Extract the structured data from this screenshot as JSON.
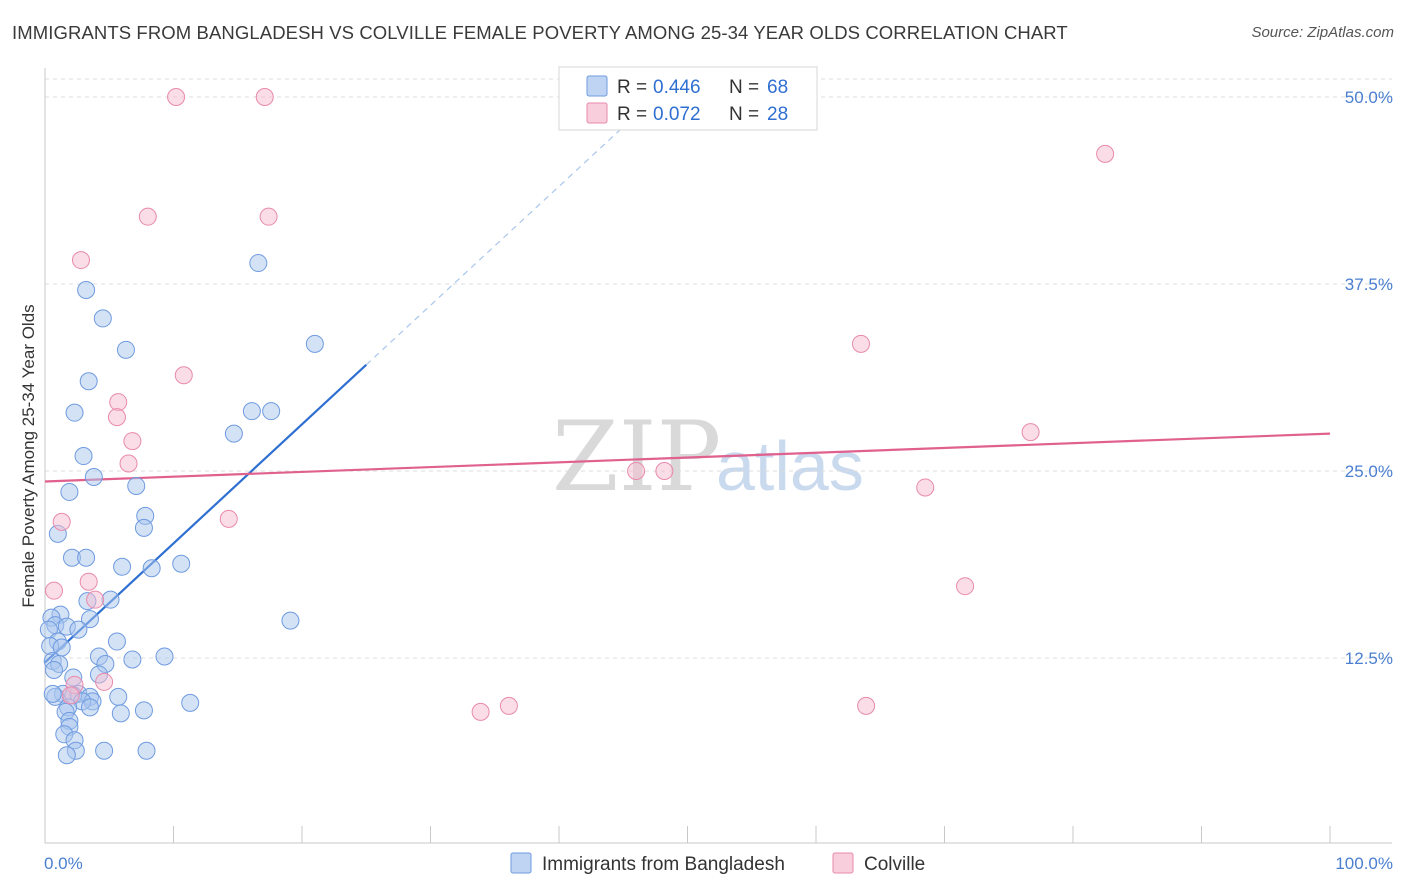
{
  "title": "IMMIGRANTS FROM BANGLADESH VS COLVILLE FEMALE POVERTY AMONG 25-34 YEAR OLDS CORRELATION CHART",
  "source": "Source: ZipAtlas.com",
  "watermark": {
    "zip": "ZIP",
    "atlas": "atlas"
  },
  "legend": {
    "r_label": "R =",
    "n_label": "N =",
    "rows": [
      {
        "r": "0.446",
        "n": "68"
      },
      {
        "r": "0.072",
        "n": "28"
      }
    ]
  },
  "chart_data": {
    "type": "scatter",
    "title": "IMMIGRANTS FROM BANGLADESH VS COLVILLE FEMALE POVERTY AMONG 25-34 YEAR OLDS CORRELATION CHART",
    "xlabel": "",
    "ylabel": "Female Poverty Among 25-34 Year Olds",
    "xlim": [
      0,
      100
    ],
    "ylim": [
      0,
      50
    ],
    "x_tick_labels": [
      "0.0%",
      "100.0%"
    ],
    "y_tick_labels": [
      "12.5%",
      "25.0%",
      "37.5%",
      "50.0%"
    ],
    "y_ticks": [
      12.5,
      25.0,
      37.5,
      50.0
    ],
    "grid": "horizontal dashed",
    "legend_position": "top-center",
    "series": [
      {
        "name": "Immigrants from Bangladesh",
        "color": "#a9c6ee",
        "edge": "#6f9be0",
        "line_color": "#2e6fd1",
        "r": 0.446,
        "n": 68,
        "trend": {
          "x0": 0,
          "y0": 12.2,
          "x1": 25.0,
          "y1": 32.1,
          "dashed_to": {
            "x": 45.0,
            "y": 48.0
          }
        },
        "points": [
          [
            3.2,
            37.1
          ],
          [
            4.5,
            35.2
          ],
          [
            6.3,
            33.1
          ],
          [
            3.4,
            31.0
          ],
          [
            2.3,
            28.9
          ],
          [
            3.0,
            26.0
          ],
          [
            3.8,
            24.6
          ],
          [
            7.1,
            24.0
          ],
          [
            1.9,
            23.6
          ],
          [
            7.8,
            22.0
          ],
          [
            7.7,
            21.2
          ],
          [
            1.0,
            20.8
          ],
          [
            2.1,
            19.2
          ],
          [
            3.2,
            19.2
          ],
          [
            6.0,
            18.6
          ],
          [
            8.3,
            18.5
          ],
          [
            10.6,
            18.8
          ],
          [
            5.1,
            16.4
          ],
          [
            3.3,
            16.3
          ],
          [
            1.2,
            15.4
          ],
          [
            0.5,
            15.2
          ],
          [
            3.5,
            15.1
          ],
          [
            0.8,
            14.7
          ],
          [
            1.7,
            14.6
          ],
          [
            0.3,
            14.4
          ],
          [
            2.6,
            14.4
          ],
          [
            1.0,
            13.6
          ],
          [
            5.6,
            13.6
          ],
          [
            0.4,
            13.3
          ],
          [
            1.3,
            13.2
          ],
          [
            4.2,
            12.6
          ],
          [
            6.8,
            12.4
          ],
          [
            9.3,
            12.6
          ],
          [
            0.6,
            12.3
          ],
          [
            1.1,
            12.1
          ],
          [
            4.7,
            12.1
          ],
          [
            0.7,
            11.7
          ],
          [
            2.2,
            11.2
          ],
          [
            4.2,
            11.4
          ],
          [
            1.4,
            10.1
          ],
          [
            2.6,
            10.1
          ],
          [
            3.5,
            9.9
          ],
          [
            0.8,
            9.9
          ],
          [
            2.2,
            10.0
          ],
          [
            3.7,
            9.6
          ],
          [
            2.9,
            9.6
          ],
          [
            1.8,
            9.2
          ],
          [
            5.7,
            9.9
          ],
          [
            11.3,
            9.5
          ],
          [
            3.5,
            9.2
          ],
          [
            1.6,
            8.9
          ],
          [
            7.7,
            9.0
          ],
          [
            5.9,
            8.8
          ],
          [
            1.9,
            8.3
          ],
          [
            1.9,
            7.9
          ],
          [
            1.5,
            7.4
          ],
          [
            2.3,
            7.0
          ],
          [
            2.4,
            6.3
          ],
          [
            4.6,
            6.3
          ],
          [
            7.9,
            6.3
          ],
          [
            1.7,
            6.0
          ],
          [
            16.6,
            38.9
          ],
          [
            21.0,
            33.5
          ],
          [
            16.1,
            29.0
          ],
          [
            17.6,
            29.0
          ],
          [
            19.1,
            15.0
          ],
          [
            14.7,
            27.5
          ],
          [
            0.6,
            10.1
          ]
        ]
      },
      {
        "name": "Colville",
        "color": "#f6bcd0",
        "edge": "#e98aab",
        "line_color": "#e0608e",
        "r": 0.072,
        "n": 28,
        "trend": {
          "x0": 0,
          "y0": 24.3,
          "x1": 100,
          "y1": 27.5
        },
        "points": [
          [
            10.2,
            50.0
          ],
          [
            17.1,
            50.0
          ],
          [
            8.0,
            42.0
          ],
          [
            17.4,
            42.0
          ],
          [
            2.8,
            39.1
          ],
          [
            10.8,
            31.4
          ],
          [
            5.7,
            29.6
          ],
          [
            5.6,
            28.6
          ],
          [
            1.3,
            21.6
          ],
          [
            6.5,
            25.5
          ],
          [
            14.3,
            21.8
          ],
          [
            0.7,
            17.0
          ],
          [
            3.4,
            17.6
          ],
          [
            3.9,
            16.4
          ],
          [
            2.3,
            10.7
          ],
          [
            4.6,
            10.9
          ],
          [
            2.0,
            10.0
          ],
          [
            6.8,
            27.0
          ],
          [
            33.9,
            8.9
          ],
          [
            36.1,
            9.3
          ],
          [
            46.0,
            25.0
          ],
          [
            48.2,
            25.0
          ],
          [
            63.9,
            9.3
          ],
          [
            63.5,
            33.5
          ],
          [
            68.5,
            23.9
          ],
          [
            71.6,
            17.3
          ],
          [
            76.7,
            27.6
          ],
          [
            82.5,
            46.2
          ]
        ]
      }
    ]
  }
}
